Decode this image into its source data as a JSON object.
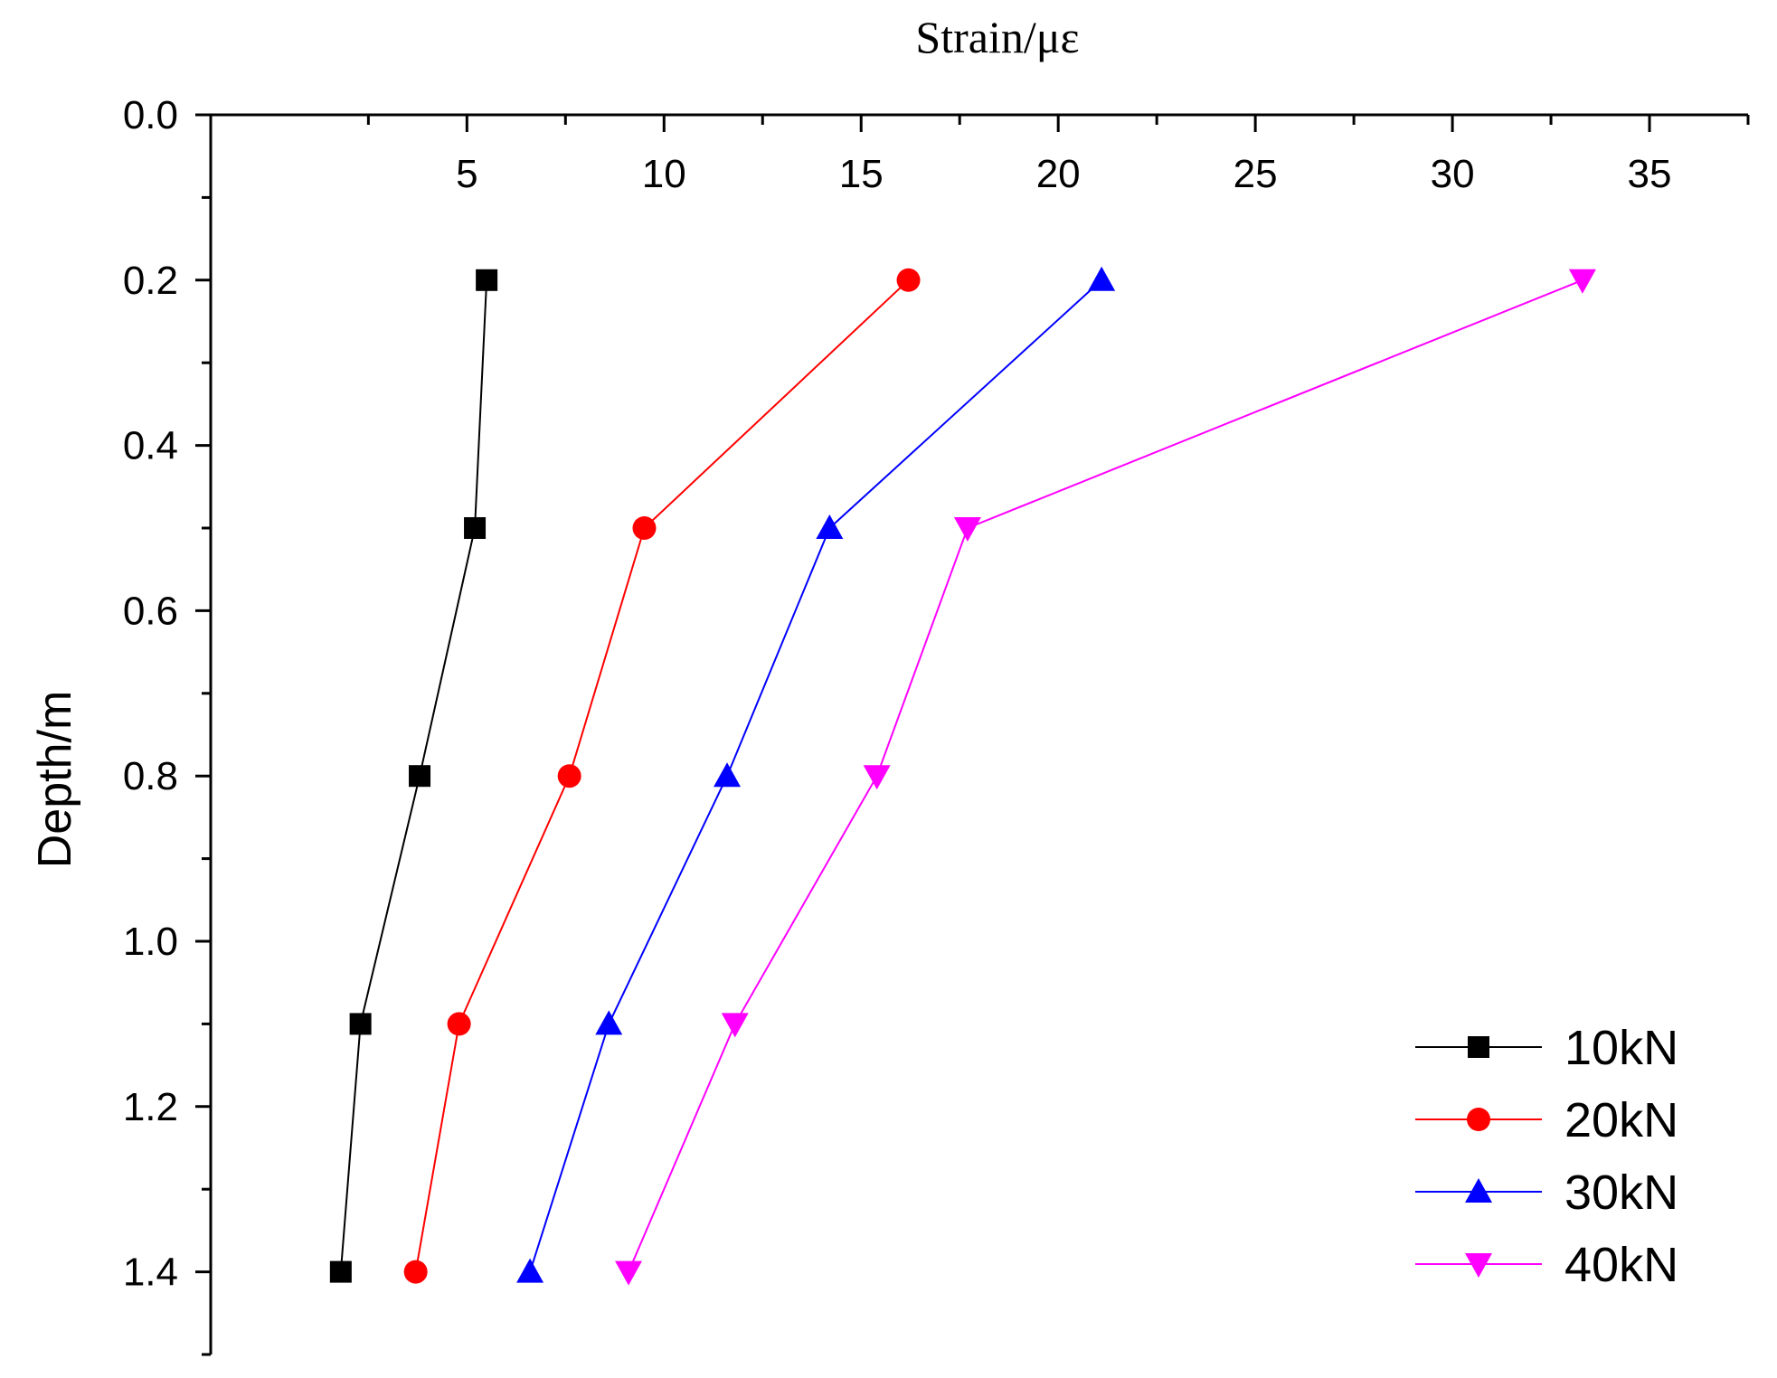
{
  "chart_data": {
    "type": "line",
    "x_axis": {
      "title": "Strain/με",
      "position": "top",
      "range": [
        -1.5,
        37.5
      ],
      "major_ticks": [
        5,
        10,
        15,
        20,
        25,
        30,
        35
      ],
      "minor_ticks": [
        2.5,
        7.5,
        12.5,
        17.5,
        22.5,
        27.5,
        32.5,
        37.5
      ]
    },
    "y_axis": {
      "title": "Depth/m",
      "inverted": true,
      "range": [
        0.0,
        1.5
      ],
      "major_ticks": [
        0.0,
        0.2,
        0.4,
        0.6,
        0.8,
        1.0,
        1.2,
        1.4
      ],
      "tick_labels": [
        "0.0",
        "0.2",
        "0.4",
        "0.6",
        "0.8",
        "1.0",
        "1.2",
        "1.4"
      ],
      "minor_ticks": [
        0.1,
        0.3,
        0.5,
        0.7,
        0.9,
        1.1,
        1.3,
        1.5
      ]
    },
    "legend_position": "bottom-right",
    "series": [
      {
        "name": "10kN",
        "color": "#000000",
        "marker": "square",
        "points": [
          [
            5.5,
            0.2
          ],
          [
            5.2,
            0.5
          ],
          [
            3.8,
            0.8
          ],
          [
            2.3,
            1.1
          ],
          [
            1.8,
            1.4
          ]
        ]
      },
      {
        "name": "20kN",
        "color": "#ff0000",
        "marker": "circle",
        "points": [
          [
            16.2,
            0.2
          ],
          [
            9.5,
            0.5
          ],
          [
            7.6,
            0.8
          ],
          [
            4.8,
            1.1
          ],
          [
            3.7,
            1.4
          ]
        ]
      },
      {
        "name": "30kN",
        "color": "#0000ff",
        "marker": "triangle-up",
        "points": [
          [
            21.1,
            0.2
          ],
          [
            14.2,
            0.5
          ],
          [
            11.6,
            0.8
          ],
          [
            8.6,
            1.1
          ],
          [
            6.6,
            1.4
          ]
        ]
      },
      {
        "name": "40kN",
        "color": "#ff00ff",
        "marker": "triangle-down",
        "points": [
          [
            33.3,
            0.2
          ],
          [
            17.7,
            0.5
          ],
          [
            15.4,
            0.8
          ],
          [
            11.8,
            1.1
          ],
          [
            9.1,
            1.4
          ]
        ]
      }
    ]
  }
}
